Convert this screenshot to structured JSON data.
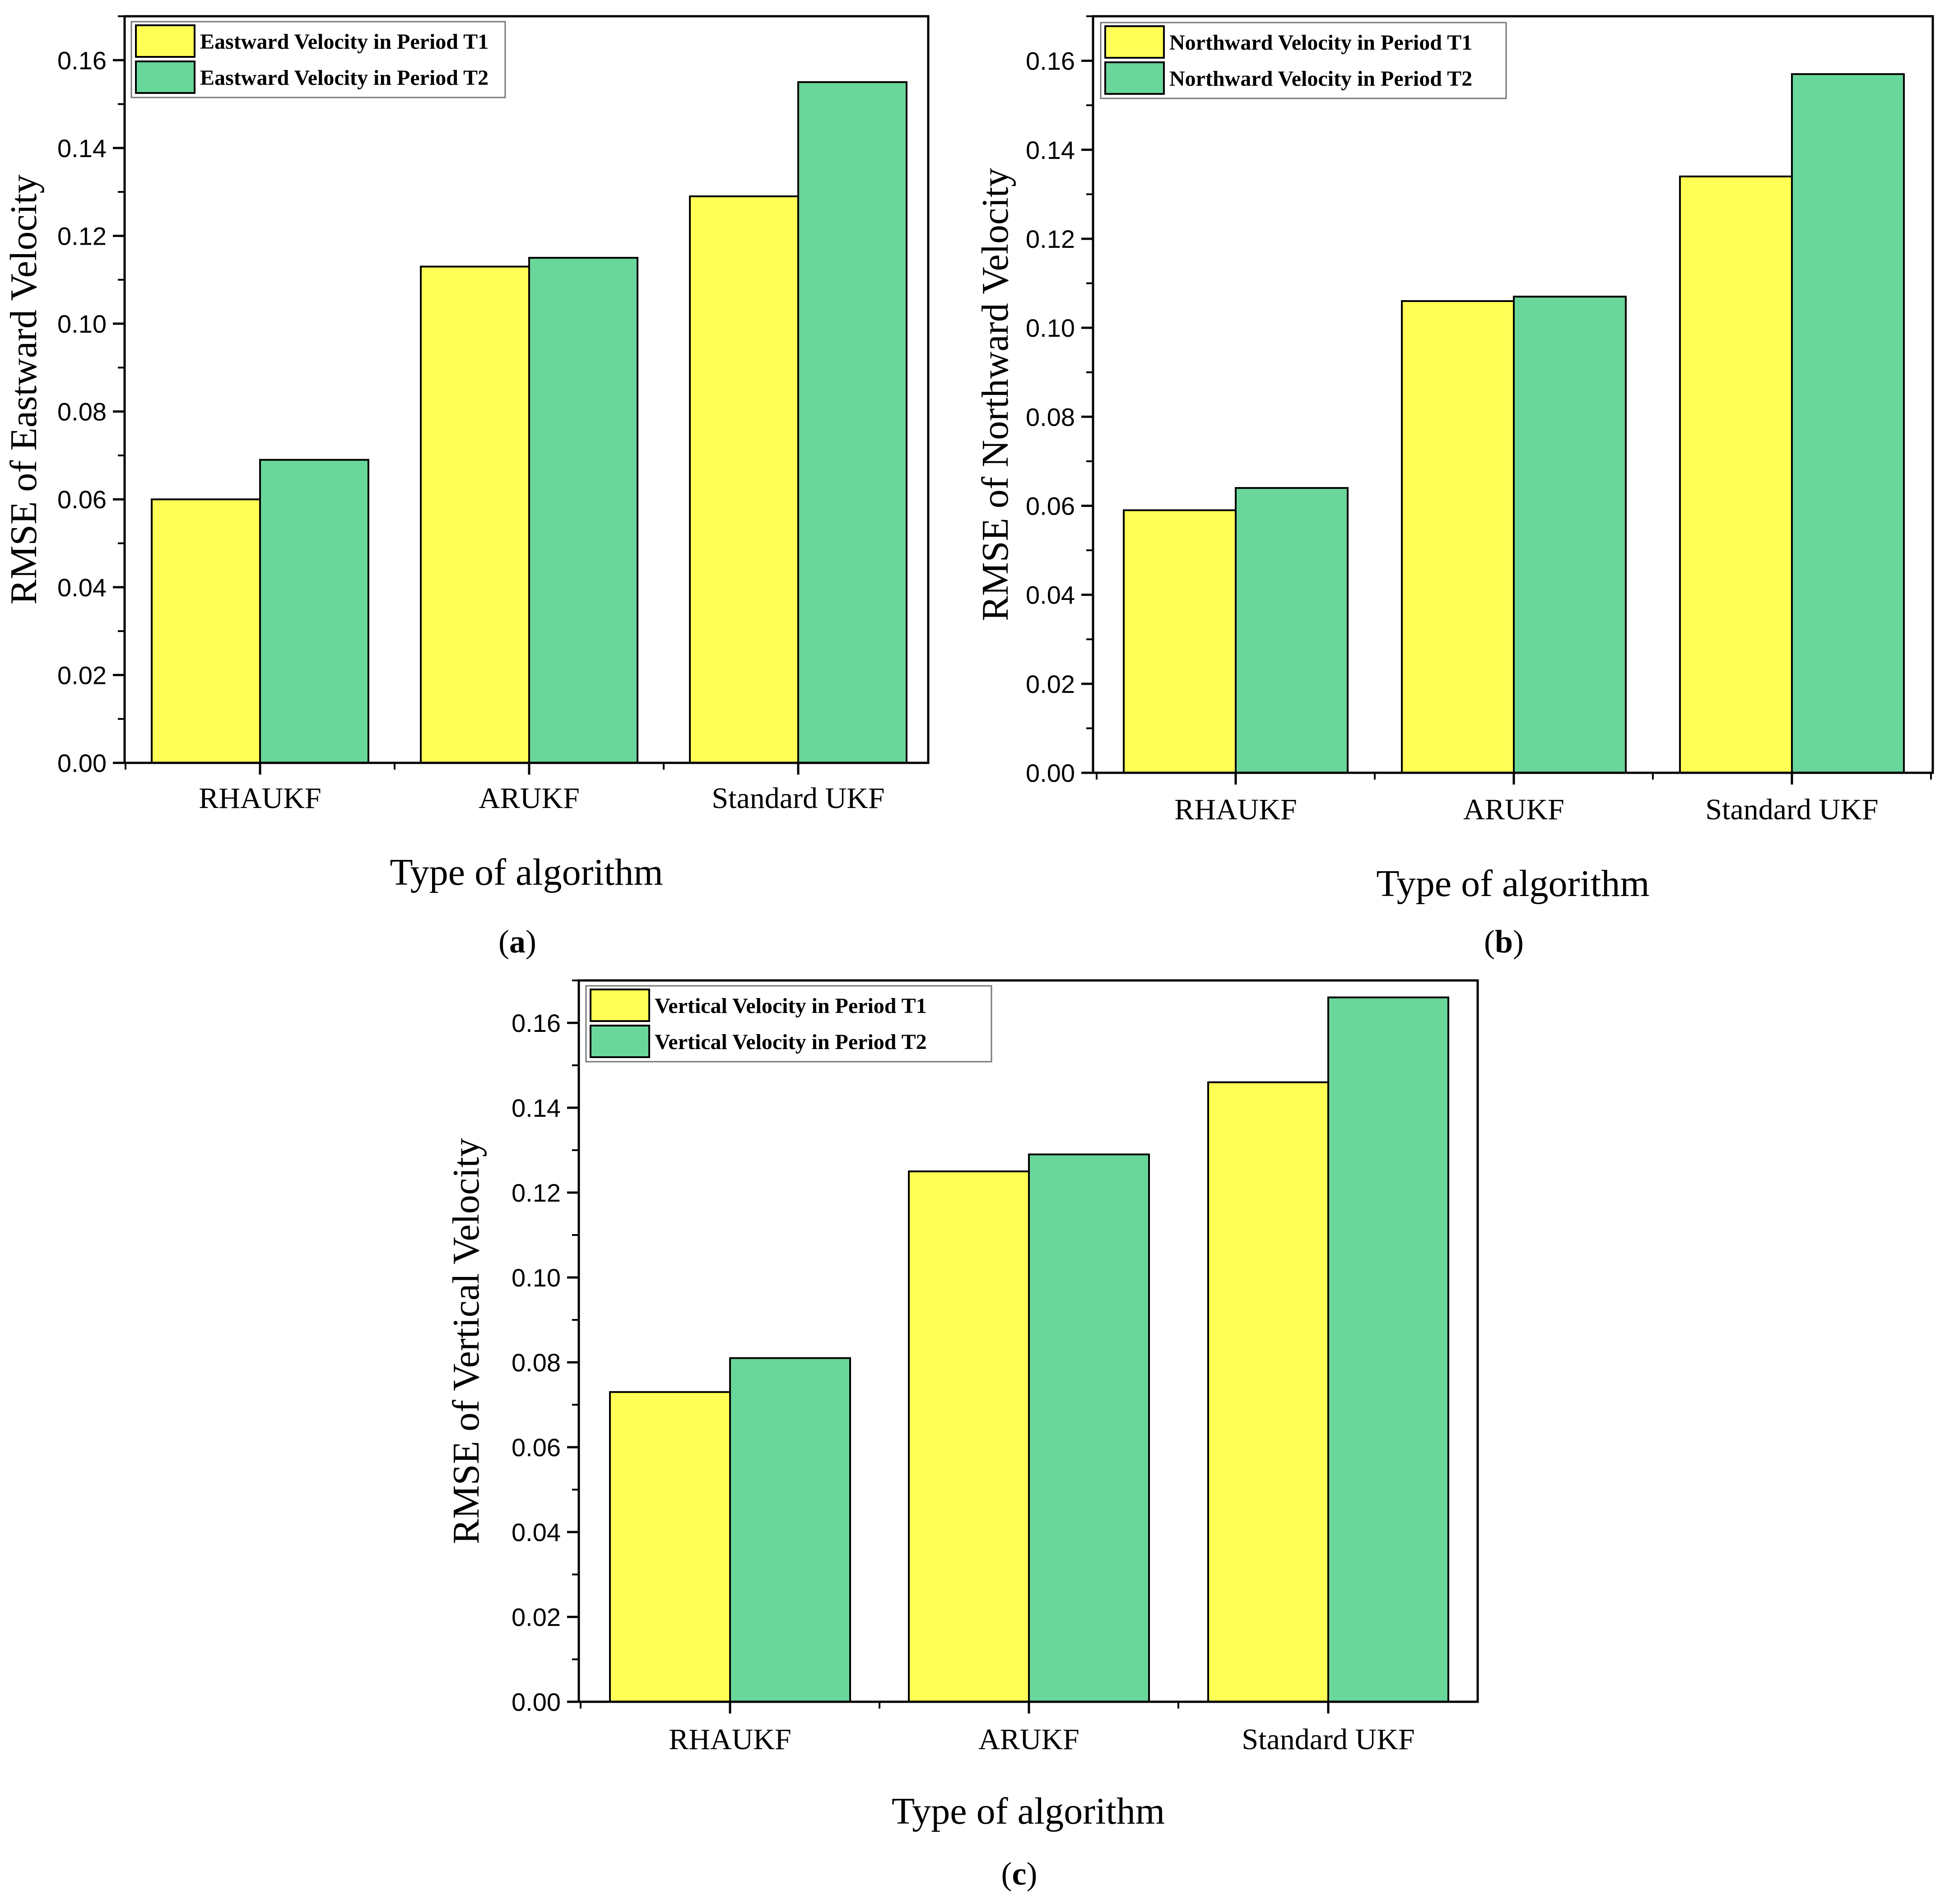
{
  "colors": {
    "t1": "#ffff55",
    "t2": "#69d69a",
    "axis": "#000000",
    "bar_edge": "#000000"
  },
  "chart_data": [
    {
      "type": "bar",
      "panel_label": "a",
      "categories": [
        "RHAUKF",
        "ARUKF",
        "Standard UKF"
      ],
      "series": [
        {
          "name": "Eastward Velocity in Period T1",
          "values": [
            0.06,
            0.113,
            0.129
          ]
        },
        {
          "name": "Eastward Velocity in Period T2",
          "values": [
            0.069,
            0.115,
            0.155
          ]
        }
      ],
      "xlabel": "Type of algorithm",
      "ylabel": "RMSE of Eastward Velocity",
      "ylim": [
        0,
        0.17
      ],
      "yticks": [
        "0.00",
        "0.02",
        "0.04",
        "0.06",
        "0.08",
        "0.10",
        "0.12",
        "0.14",
        "0.16"
      ],
      "legend": "top-left"
    },
    {
      "type": "bar",
      "panel_label": "b",
      "categories": [
        "RHAUKF",
        "ARUKF",
        "Standard UKF"
      ],
      "series": [
        {
          "name": "Northward Velocity in Period T1",
          "values": [
            0.059,
            0.106,
            0.134
          ]
        },
        {
          "name": "Northward Velocity in Period T2",
          "values": [
            0.064,
            0.107,
            0.157
          ]
        }
      ],
      "xlabel": "Type of algorithm",
      "ylabel": "RMSE of Northward Velocity",
      "ylim": [
        0,
        0.17
      ],
      "yticks": [
        "0.00",
        "0.02",
        "0.04",
        "0.06",
        "0.08",
        "0.10",
        "0.12",
        "0.14",
        "0.16"
      ],
      "legend": "top-left"
    },
    {
      "type": "bar",
      "panel_label": "c",
      "categories": [
        "RHAUKF",
        "ARUKF",
        "Standard UKF"
      ],
      "series": [
        {
          "name": "Vertical Velocity in Period T1",
          "values": [
            0.073,
            0.125,
            0.146
          ]
        },
        {
          "name": "Vertical Velocity in Period T2",
          "values": [
            0.081,
            0.129,
            0.166
          ]
        }
      ],
      "xlabel": "Type of algorithm",
      "ylabel": "RMSE of Vertical Velocity",
      "ylim": [
        0,
        0.17
      ],
      "yticks": [
        "0.00",
        "0.02",
        "0.04",
        "0.06",
        "0.08",
        "0.10",
        "0.12",
        "0.14",
        "0.16"
      ],
      "legend": "top-left"
    }
  ]
}
